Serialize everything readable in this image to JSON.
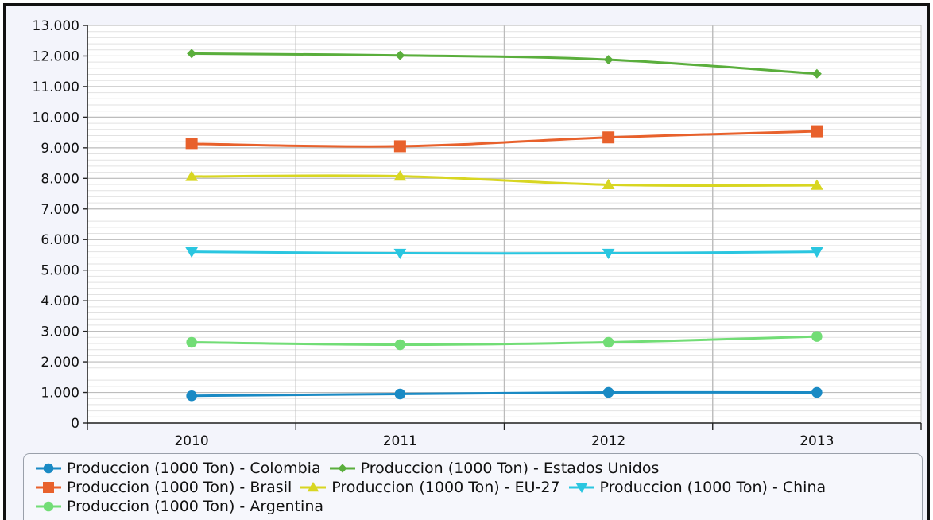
{
  "chart_data": {
    "type": "line",
    "title": "",
    "xlabel": "",
    "ylabel": "",
    "categories": [
      "2010",
      "2011",
      "2012",
      "2013"
    ],
    "ylim": [
      0,
      13000
    ],
    "y_ticks": [
      {
        "value": 0,
        "label": "0"
      },
      {
        "value": 1000,
        "label": "1.000"
      },
      {
        "value": 2000,
        "label": "2.000"
      },
      {
        "value": 3000,
        "label": "3.000"
      },
      {
        "value": 4000,
        "label": "4.000"
      },
      {
        "value": 5000,
        "label": "5.000"
      },
      {
        "value": 6000,
        "label": "6.000"
      },
      {
        "value": 7000,
        "label": "7.000"
      },
      {
        "value": 8000,
        "label": "8.000"
      },
      {
        "value": 9000,
        "label": "9.000"
      },
      {
        "value": 10000,
        "label": "10.000"
      },
      {
        "value": 11000,
        "label": "11.000"
      },
      {
        "value": 12000,
        "label": "12.000"
      },
      {
        "value": 13000,
        "label": "13.000"
      }
    ],
    "grid": true,
    "legend_position": "bottom",
    "series": [
      {
        "name": "Produccion (1000 Ton) - Colombia",
        "color": "#1a8ac4",
        "marker": "circle",
        "values": [
          890,
          950,
          1000,
          1000
        ]
      },
      {
        "name": "Produccion (1000 Ton) - Estados Unidos",
        "color": "#5aae3c",
        "marker": "diamond",
        "values": [
          12080,
          12020,
          11880,
          11420
        ]
      },
      {
        "name": "Produccion (1000 Ton) - Brasil",
        "color": "#e8612c",
        "marker": "square",
        "values": [
          9130,
          9050,
          9340,
          9540
        ]
      },
      {
        "name": "Produccion (1000 Ton) - EU-27",
        "color": "#d8d622",
        "marker": "triangle-up",
        "values": [
          8060,
          8070,
          7790,
          7770
        ]
      },
      {
        "name": "Produccion (1000 Ton) - China",
        "color": "#2ac6e0",
        "marker": "triangle-down",
        "values": [
          5600,
          5550,
          5550,
          5600
        ]
      },
      {
        "name": "Produccion (1000 Ton) - Argentina",
        "color": "#72dd76",
        "marker": "circle",
        "values": [
          2640,
          2560,
          2640,
          2830
        ]
      }
    ]
  }
}
